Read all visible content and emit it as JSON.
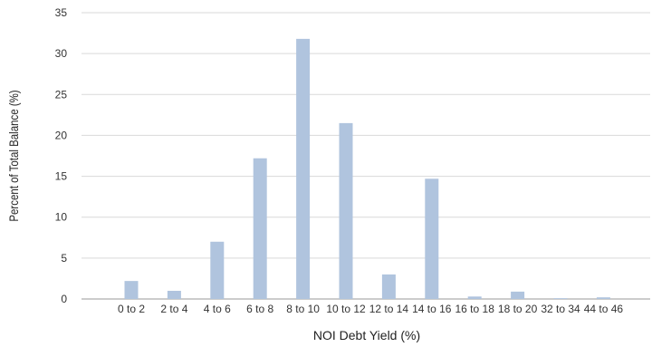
{
  "chart_data": {
    "type": "bar",
    "title": "",
    "xlabel": "NOI Debt Yield (%)",
    "ylabel": "Percent of Total Balance (%)",
    "ylim": [
      0,
      35
    ],
    "yticks": [
      0,
      5,
      10,
      15,
      20,
      25,
      30,
      35
    ],
    "grid": "horizontal",
    "categories": [
      "0 to 2",
      "2 to 4",
      "4 to 6",
      "6 to 8",
      "8 to 10",
      "10 to 12",
      "12 to 14",
      "14 to 16",
      "16 to 18",
      "18 to 20",
      "32 to 34",
      "44 to 46"
    ],
    "values": [
      2.2,
      1.0,
      7.0,
      17.2,
      31.8,
      21.5,
      3.0,
      14.7,
      0.3,
      0.9,
      0.1,
      0.2
    ],
    "bar_color": "#b0c4de",
    "grid_color": "#d9d9d9",
    "axis_color": "#999999"
  }
}
